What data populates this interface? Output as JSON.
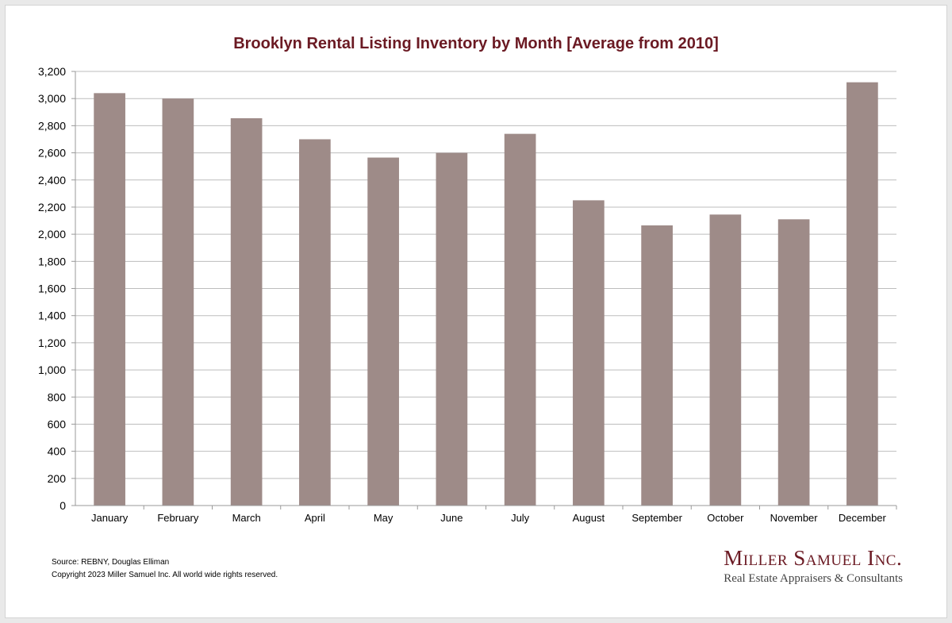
{
  "colors": {
    "bar": "#9e8b88",
    "title": "#6b1a23",
    "grid": "#bdbdbd",
    "axis": "#999999"
  },
  "chart_data": {
    "type": "bar",
    "title": "Brooklyn Rental Listing Inventory by Month [Average from 2010]",
    "xlabel": "",
    "ylabel": "",
    "categories": [
      "January",
      "February",
      "March",
      "April",
      "May",
      "June",
      "July",
      "August",
      "September",
      "October",
      "November",
      "December"
    ],
    "values": [
      3040,
      3000,
      2855,
      2700,
      2565,
      2600,
      2740,
      2250,
      2065,
      2145,
      2110,
      3120
    ],
    "ylim": [
      0,
      3200
    ],
    "yticks": [
      "0",
      "200",
      "400",
      "600",
      "800",
      "1,000",
      "1,200",
      "1,400",
      "1,600",
      "1,800",
      "2,000",
      "2,200",
      "2,400",
      "2,600",
      "2,800",
      "3,000",
      "3,200"
    ],
    "grid": true,
    "legend": "none"
  },
  "footer": {
    "source": "Source: REBNY, Douglas Elliman",
    "copyright": "Copyright 2023 Miller Samuel Inc.  All world wide rights reserved."
  },
  "logo": {
    "name": "Miller Samuel Inc.",
    "tagline": "Real Estate Appraisers & Consultants"
  }
}
